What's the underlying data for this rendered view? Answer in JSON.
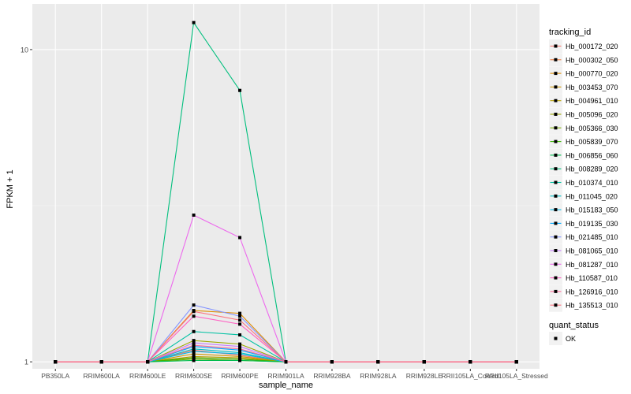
{
  "chart_data": {
    "type": "line",
    "xlabel": "sample_name",
    "ylabel": "FPKM + 1",
    "y_scale": "log10",
    "ylim": [
      0.95,
      14
    ],
    "y_ticks": [
      1,
      10
    ],
    "y_tick_labels": [
      "1",
      "10"
    ],
    "categories": [
      "PB350LA",
      "RRIM600LA",
      "RRIM600LE",
      "RRIM600SE",
      "RRIM600PE",
      "RRIM901LA",
      "RRIM928BA",
      "RRIM928LA",
      "RRIM928LE",
      "RRII105LA_Control",
      "RRII105LA_Stressed"
    ],
    "series": [
      {
        "name": "Hb_000172_020",
        "color": "#F8766D",
        "values": [
          1,
          1,
          1,
          1.09,
          1.05,
          1,
          1,
          1,
          1,
          1,
          1
        ]
      },
      {
        "name": "Hb_000302_050",
        "color": "#EE8044",
        "values": [
          1,
          1,
          1,
          1.03,
          1.02,
          1,
          1,
          1,
          1,
          1,
          1
        ]
      },
      {
        "name": "Hb_000770_020",
        "color": "#DE8C00",
        "values": [
          1,
          1,
          1,
          1.46,
          1.43,
          1,
          1,
          1,
          1,
          1,
          1
        ]
      },
      {
        "name": "Hb_003453_070",
        "color": "#CD9600",
        "values": [
          1,
          1,
          1,
          1.06,
          1.04,
          1,
          1,
          1,
          1,
          1,
          1
        ]
      },
      {
        "name": "Hb_004961_010",
        "color": "#B79F00",
        "values": [
          1,
          1,
          1,
          1.04,
          1.03,
          1,
          1,
          1,
          1,
          1,
          1
        ]
      },
      {
        "name": "Hb_005096_020",
        "color": "#9DA700",
        "values": [
          1,
          1,
          1,
          1.17,
          1.14,
          1,
          1,
          1,
          1,
          1,
          1
        ]
      },
      {
        "name": "Hb_005366_030",
        "color": "#7CAE00",
        "values": [
          1,
          1,
          1,
          1.02,
          1.01,
          1,
          1,
          1,
          1,
          1,
          1
        ]
      },
      {
        "name": "Hb_005839_070",
        "color": "#39B600",
        "values": [
          1,
          1,
          1,
          1.03,
          1.02,
          1,
          1,
          1,
          1,
          1,
          1
        ]
      },
      {
        "name": "Hb_006856_060",
        "color": "#00BB4E",
        "values": [
          1,
          1,
          1,
          1.01,
          1.01,
          1,
          1,
          1,
          1,
          1,
          1
        ]
      },
      {
        "name": "Hb_008289_020",
        "color": "#00BF7D",
        "values": [
          1,
          1,
          1,
          12.2,
          7.4,
          1,
          1,
          1,
          1,
          1,
          1
        ]
      },
      {
        "name": "Hb_010374_010",
        "color": "#00C1A3",
        "values": [
          1,
          1,
          1,
          1.25,
          1.22,
          1,
          1,
          1,
          1,
          1,
          1
        ]
      },
      {
        "name": "Hb_011045_020",
        "color": "#00BFC4",
        "values": [
          1,
          1,
          1,
          1.1,
          1.07,
          1,
          1,
          1,
          1,
          1,
          1
        ]
      },
      {
        "name": "Hb_015183_050",
        "color": "#00B8E7",
        "values": [
          1,
          1,
          1,
          1.08,
          1.06,
          1,
          1,
          1,
          1,
          1,
          1
        ]
      },
      {
        "name": "Hb_019135_030",
        "color": "#00A9FF",
        "values": [
          1,
          1,
          1,
          1.12,
          1.09,
          1,
          1,
          1,
          1,
          1,
          1
        ]
      },
      {
        "name": "Hb_021485_010",
        "color": "#8494FF",
        "values": [
          1,
          1,
          1,
          1.52,
          1.4,
          1,
          1,
          1,
          1,
          1,
          1
        ]
      },
      {
        "name": "Hb_081065_010",
        "color": "#C77CFF",
        "values": [
          1,
          1,
          1,
          1.15,
          1.12,
          1,
          1,
          1,
          1,
          1,
          1
        ]
      },
      {
        "name": "Hb_081287_010",
        "color": "#ED68ED",
        "values": [
          1,
          1,
          1,
          2.95,
          2.5,
          1,
          1,
          1,
          1,
          1,
          1
        ]
      },
      {
        "name": "Hb_110587_010",
        "color": "#FF61C3",
        "values": [
          1,
          1,
          1,
          1.4,
          1.32,
          1,
          1,
          1,
          1,
          1,
          1
        ]
      },
      {
        "name": "Hb_126916_010",
        "color": "#FF6A98",
        "values": [
          1,
          1,
          1,
          1.13,
          1.1,
          1,
          1,
          1,
          1,
          1,
          1
        ]
      },
      {
        "name": "Hb_135513_010",
        "color": "#FC717F",
        "values": [
          1,
          1,
          1,
          1.45,
          1.36,
          1,
          1,
          1,
          1,
          1,
          1
        ]
      }
    ],
    "legend": {
      "placement": "right",
      "color_title": "tracking_id",
      "shape_title": "quant_status",
      "shape_entries": [
        "OK"
      ]
    },
    "grid": true,
    "background": "#EBEBEB",
    "grid_major_color": "#FFFFFF",
    "grid_minor_color": "#F5F5F5"
  }
}
